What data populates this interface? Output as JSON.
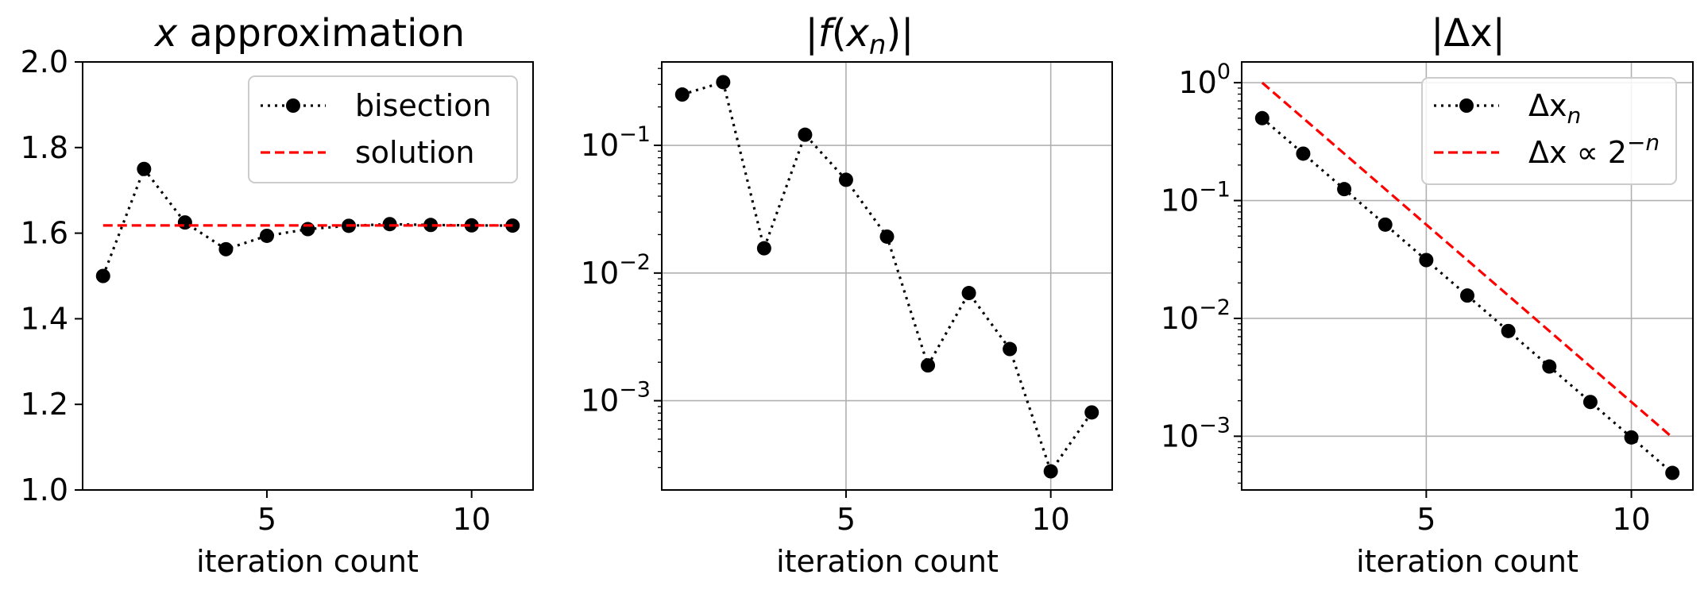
{
  "chart_data": [
    {
      "type": "line",
      "title": "x approximation",
      "title_var": "x",
      "title_rest": " approximation",
      "xlabel": "iteration count",
      "ylabel": "",
      "yscale": "linear",
      "xlim": [
        0.5,
        11.5
      ],
      "ylim": [
        1.0,
        2.0
      ],
      "xticks": [
        5,
        10
      ],
      "xtick_labels": [
        "5",
        "10"
      ],
      "yticks": [
        1.0,
        1.2,
        1.4,
        1.6,
        1.8,
        2.0
      ],
      "ytick_labels": [
        "1.0",
        "1.2",
        "1.4",
        "1.6",
        "1.8",
        "2.0"
      ],
      "grid": false,
      "legend": "upper right",
      "series": [
        {
          "name": "bisection",
          "style": "dotted-markers",
          "color": "#000000",
          "x": [
            1,
            2,
            3,
            4,
            5,
            6,
            7,
            8,
            9,
            10,
            11
          ],
          "y": [
            1.5,
            1.75,
            1.625,
            1.5625,
            1.59375,
            1.609375,
            1.6171875,
            1.62109375,
            1.619140625,
            1.6181640625,
            1.61767578125
          ]
        },
        {
          "name": "solution",
          "style": "dashed",
          "color": "#ff0000",
          "x": [
            1,
            11
          ],
          "y": [
            1.618034,
            1.618034
          ]
        }
      ]
    },
    {
      "type": "line",
      "title": "|f(xn)|",
      "xlabel": "iteration count",
      "ylabel": "",
      "yscale": "log",
      "xlim": [
        0.5,
        11.5
      ],
      "ylim": [
        0.0002,
        0.45
      ],
      "xticks": [
        5,
        10
      ],
      "xtick_labels": [
        "5",
        "10"
      ],
      "yticks": [
        0.001,
        0.01,
        0.1
      ],
      "ytick_bases": [
        "10",
        "10",
        "10"
      ],
      "ytick_exps": [
        "−3",
        "−2",
        "−1"
      ],
      "grid": true,
      "series": [
        {
          "name": "",
          "style": "dotted-markers",
          "color": "#000000",
          "x": [
            1,
            2,
            3,
            4,
            5,
            6,
            7,
            8,
            9,
            10,
            11
          ],
          "y": [
            0.25,
            0.3125,
            0.015625,
            0.12109,
            0.05371,
            0.01928,
            0.00189,
            0.00697,
            0.00254,
            0.00028,
            0.00081
          ]
        }
      ]
    },
    {
      "type": "line",
      "title": "|Δx|",
      "xlabel": "iteration count",
      "ylabel": "",
      "yscale": "log",
      "xlim": [
        0.5,
        11.5
      ],
      "ylim": [
        0.00035,
        1.5
      ],
      "xticks": [
        5,
        10
      ],
      "xtick_labels": [
        "5",
        "10"
      ],
      "yticks": [
        0.001,
        0.01,
        0.1,
        1
      ],
      "ytick_bases": [
        "10",
        "10",
        "10",
        "10"
      ],
      "ytick_exps": [
        "−3",
        "−2",
        "−1",
        "0"
      ],
      "grid": true,
      "legend": "upper right",
      "series": [
        {
          "name": "Δxn",
          "style": "dotted-markers",
          "color": "#000000",
          "x": [
            1,
            2,
            3,
            4,
            5,
            6,
            7,
            8,
            9,
            10,
            11
          ],
          "y": [
            0.5,
            0.25,
            0.125,
            0.0625,
            0.03125,
            0.015625,
            0.0078125,
            0.00390625,
            0.001953125,
            0.0009765625,
            0.00048828125
          ]
        },
        {
          "name": "Δx ∝ 2−n",
          "style": "dashed",
          "color": "#ff0000",
          "x": [
            1,
            11
          ],
          "y": [
            1.0,
            0.0009765625
          ]
        }
      ]
    }
  ],
  "legend_labels": {
    "bisection": "bisection",
    "solution": "solution",
    "dx_base": "Δx",
    "dx_sub": "n",
    "fit_base": "Δx ∝ 2",
    "fit_exp": "−n"
  },
  "titles": {
    "t2_pre": "|",
    "t2_f": "f",
    "t2_open": "(",
    "t2_x": "x",
    "t2_sub": "n",
    "t2_close": ")|",
    "t3": "|Δx|"
  }
}
